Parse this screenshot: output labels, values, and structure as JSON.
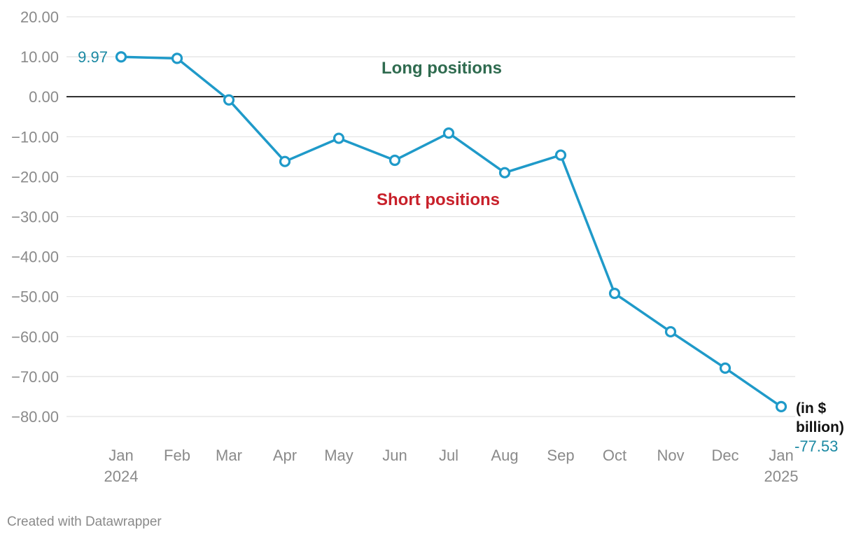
{
  "chart_data": {
    "type": "line",
    "categories": [
      "Jan 2024",
      "Feb",
      "Mar",
      "Apr",
      "May",
      "Jun",
      "Jul",
      "Aug",
      "Sep",
      "Oct",
      "Nov",
      "Dec",
      "Jan 2025"
    ],
    "x_labels": [
      [
        "Jan",
        "2024"
      ],
      [
        "Feb"
      ],
      [
        "Mar"
      ],
      [
        "Apr"
      ],
      [
        "May"
      ],
      [
        "Jun"
      ],
      [
        "Jul"
      ],
      [
        "Aug"
      ],
      [
        "Sep"
      ],
      [
        "Oct"
      ],
      [
        "Nov"
      ],
      [
        "Dec"
      ],
      [
        "Jan",
        "2025"
      ]
    ],
    "series": [
      {
        "values": [
          9.97,
          9.6,
          -0.8,
          -16.2,
          -10.4,
          -15.9,
          -9.1,
          -19.0,
          -14.6,
          -49.2,
          -58.8,
          -67.9,
          -77.53
        ]
      }
    ],
    "ylim": [
      -80,
      20
    ],
    "yticks": [
      20,
      10,
      0,
      -10,
      -20,
      -30,
      -40,
      -50,
      -60,
      -70,
      -80
    ],
    "ytick_labels": [
      "20.00",
      "10.00",
      "0.00",
      "−10.00",
      "−20.00",
      "−30.00",
      "−40.00",
      "−50.00",
      "−60.00",
      "−70.00",
      "−80.00"
    ],
    "first_value_label": "9.97",
    "last_value_label": "-77.53",
    "unit_label": [
      "(in $",
      "billion)"
    ],
    "annotations": {
      "long": "Long positions",
      "short": "Short positions"
    },
    "grid": true,
    "colors": {
      "line": "#1f9ac9",
      "grid": "#e2e2e2",
      "zero": "#000000"
    }
  },
  "footer": "Created with Datawrapper"
}
